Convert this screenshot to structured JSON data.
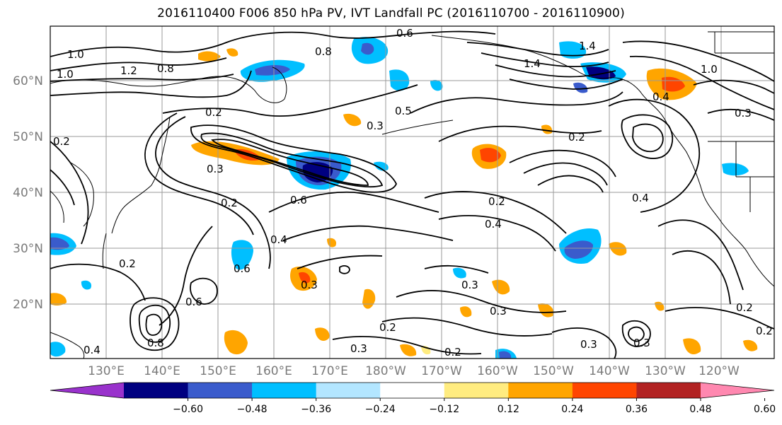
{
  "title": "2016110400 F006 850 hPa PV, IVT Landfall PC (2016110700 - 2016110900)",
  "map": {
    "lat_labels": [
      "60°N",
      "50°N",
      "40°N",
      "30°N",
      "20°N"
    ],
    "lon_labels": [
      "130°E",
      "140°E",
      "150°E",
      "160°E",
      "170°E",
      "180°W",
      "170°W",
      "160°W",
      "150°W",
      "140°W",
      "130°W",
      "120°W"
    ],
    "contour_labels": [
      "1.0",
      "1.0",
      "1.2",
      "0.8",
      "0.2",
      "0.2",
      "0.3",
      "0.5",
      "0.3",
      "0.6",
      "0.8",
      "1.4",
      "1.4",
      "1.0",
      "0.4",
      "0.3",
      "0.2",
      "0.2",
      "0.4",
      "0.3",
      "0.3",
      "0.2",
      "0.2",
      "0.6",
      "0.4",
      "0.6",
      "0.8",
      "0.6",
      "0.3",
      "0.3",
      "0.2",
      "0.2",
      "0.3",
      "0.2",
      "0.3",
      "0.4",
      "0.4",
      "0.2"
    ]
  },
  "colorbar": {
    "colors": [
      "#9932cc",
      "#000080",
      "#3a5bcc",
      "#00bfff",
      "#b3e6ff",
      "#ffffff",
      "#ffec80",
      "#ffa500",
      "#ff4500",
      "#b22222",
      "#ff88b0"
    ],
    "ticks": [
      "−0.60",
      "−0.48",
      "−0.36",
      "−0.24",
      "−0.12",
      "0.12",
      "0.24",
      "0.36",
      "0.48",
      "0.60"
    ]
  }
}
